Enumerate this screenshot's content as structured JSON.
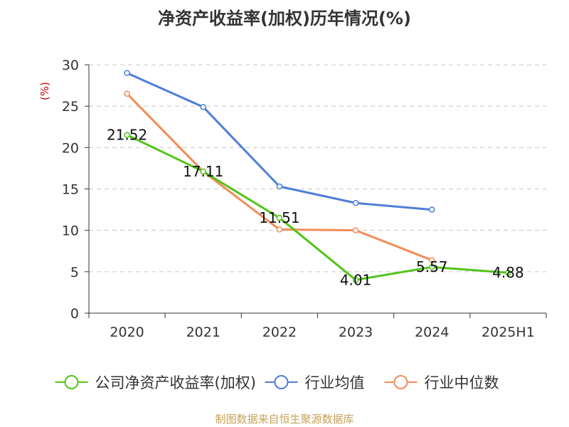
{
  "title": "净资产收益率(加权)历年情况(%)",
  "source_note": "制图数据来自恒生聚源数据库",
  "chart_data": {
    "type": "line",
    "title": "净资产收益率(加权)历年情况(%)",
    "ylabel": "(%)",
    "xlabel": "",
    "ylim": [
      0,
      30
    ],
    "yticks": [
      0,
      5,
      10,
      15,
      20,
      25,
      30
    ],
    "categories": [
      "2020",
      "2021",
      "2022",
      "2023",
      "2024",
      "2025H1"
    ],
    "grid": true,
    "legend_position": "bottom",
    "series": [
      {
        "name": "公司净资产收益率(加权)",
        "color": "#52c41a",
        "values": [
          21.52,
          17.11,
          11.51,
          4.01,
          5.57,
          4.88
        ],
        "labels": [
          "21.52",
          "17.11",
          "11.51",
          "4.01",
          "5.57",
          "4.88"
        ]
      },
      {
        "name": "行业均值",
        "color": "#4e7fd6",
        "values": [
          29.0,
          24.9,
          15.3,
          13.3,
          12.5,
          null
        ],
        "labels": null
      },
      {
        "name": "行业中位数",
        "color": "#f28c5a",
        "values": [
          26.5,
          17.1,
          10.1,
          10.0,
          6.4,
          null
        ],
        "labels": null
      }
    ]
  }
}
